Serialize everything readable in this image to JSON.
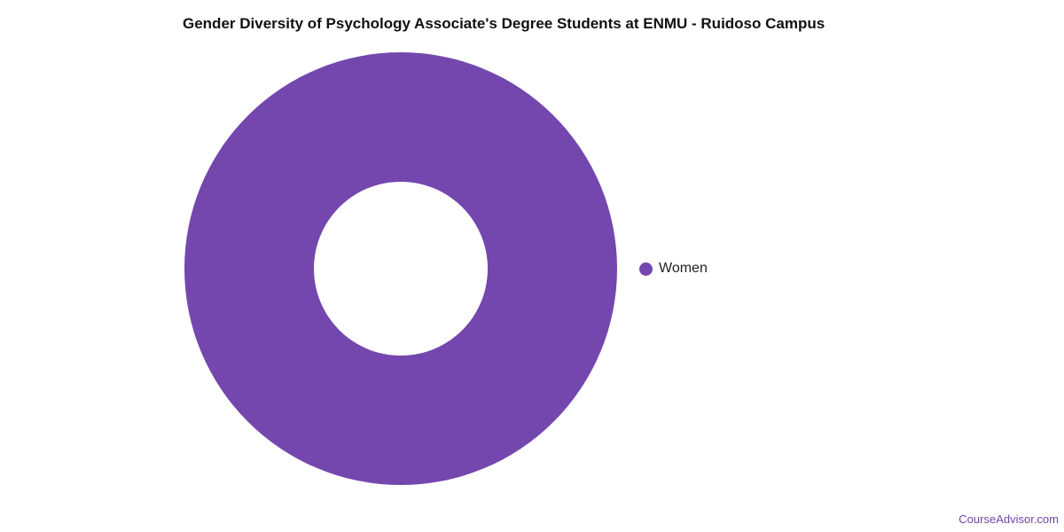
{
  "chart_data": {
    "type": "pie",
    "title": "Gender Diversity of Psychology Associate's Degree Students at ENMU - Ruidoso Campus",
    "donut": true,
    "slices": [
      {
        "label": "Women",
        "value": 100,
        "color": "#7447ae"
      }
    ],
    "legend_placement": "right"
  },
  "credit": "CourseAdvisor.com"
}
